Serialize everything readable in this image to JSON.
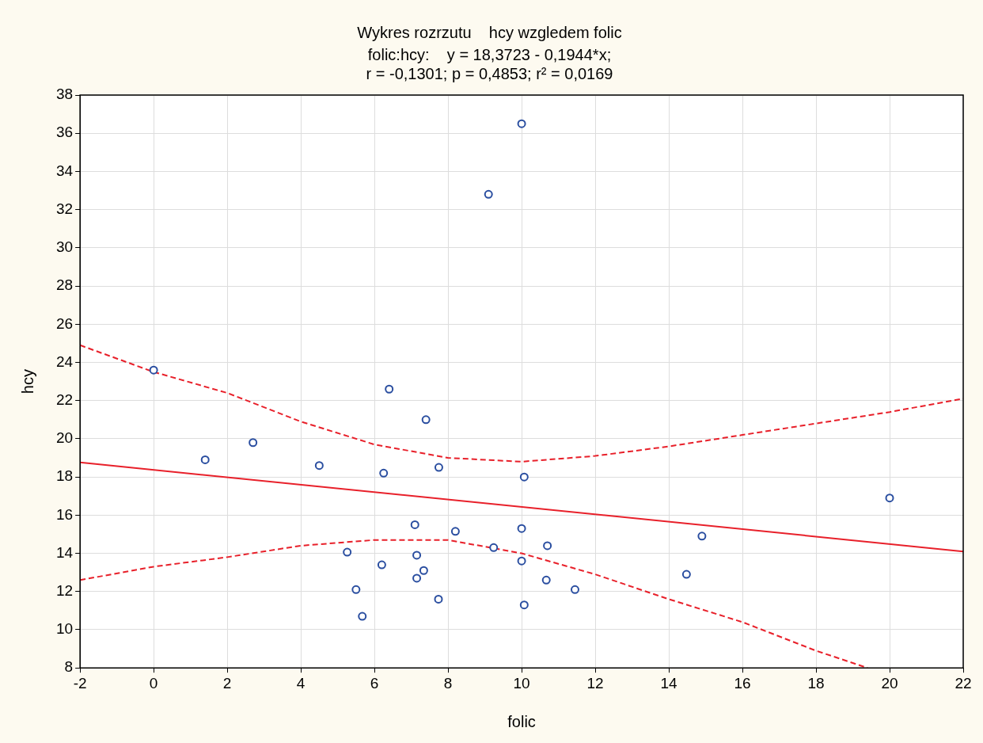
{
  "chart_data": {
    "type": "scatter",
    "title": "Wykres rozrzutu    hcy wzgledem folic",
    "subtitle": "folic:hcy:    y = 18,3723 - 0,1944*x;\nr = -0,1301; p = 0,4853; r² = 0,0169",
    "xlabel": "folic",
    "ylabel": "hcy",
    "xlim": [
      -2,
      22
    ],
    "xticks": [
      -2,
      0,
      2,
      4,
      6,
      8,
      10,
      12,
      14,
      16,
      18,
      20,
      22
    ],
    "ylim": [
      8,
      38
    ],
    "yticks": [
      8,
      10,
      12,
      14,
      16,
      18,
      20,
      22,
      24,
      26,
      28,
      30,
      32,
      34,
      36,
      38
    ],
    "grid": true,
    "legend": false,
    "marker": "circle",
    "series": [
      {
        "type": "scatter",
        "color": "#2a4ea0",
        "x": [
          0,
          1.4,
          2.7,
          4.5,
          6.4,
          7.4,
          6.25,
          7.75,
          9.1,
          10,
          10.07,
          7.1,
          8.2,
          9.24,
          10,
          10.7,
          5.26,
          6.2,
          7.15,
          7.34,
          7.15,
          10,
          10.67,
          11.45,
          5.5,
          5.67,
          7.74,
          10.07,
          14.48,
          14.9,
          20
        ],
        "values": [
          23.6,
          18.9,
          19.8,
          18.6,
          22.6,
          21.0,
          18.2,
          18.5,
          32.8,
          36.5,
          18.0,
          15.5,
          15.15,
          14.3,
          15.3,
          14.4,
          14.06,
          13.4,
          13.9,
          13.1,
          12.7,
          13.6,
          12.6,
          12.1,
          12.1,
          10.7,
          11.6,
          11.3,
          12.9,
          14.9,
          16.9
        ]
      },
      {
        "type": "line",
        "color": "#e8202a",
        "marker": "none",
        "line_style": "solid",
        "x": [
          -2,
          22
        ],
        "values": [
          18.76,
          14.1
        ]
      },
      {
        "type": "line",
        "color": "#e8202a",
        "marker": "none",
        "line_style": "dashed",
        "x": [
          -2,
          0,
          2,
          4,
          6,
          8,
          10,
          12,
          14,
          16,
          18,
          20,
          22
        ],
        "values": [
          24.9,
          23.5,
          22.4,
          20.9,
          19.7,
          19.0,
          18.8,
          19.1,
          19.6,
          20.2,
          20.8,
          21.4,
          22.1
        ]
      },
      {
        "type": "line",
        "color": "#e8202a",
        "marker": "none",
        "line_style": "dashed",
        "x": [
          -2,
          0,
          2,
          4,
          6,
          8,
          10,
          12,
          14,
          16,
          18,
          19.4
        ],
        "values": [
          12.6,
          13.3,
          13.8,
          14.4,
          14.7,
          14.7,
          14.0,
          12.9,
          11.6,
          10.4,
          8.9,
          8.0
        ]
      }
    ]
  }
}
